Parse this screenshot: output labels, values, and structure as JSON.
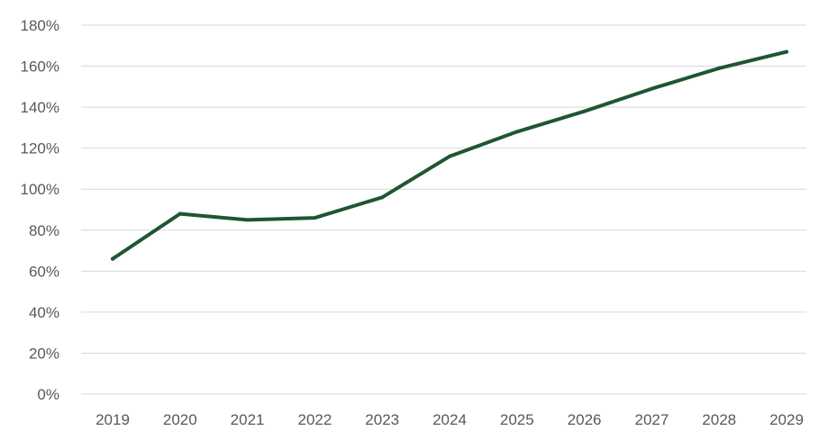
{
  "chart_data": {
    "type": "line",
    "x": [
      "2019",
      "2020",
      "2021",
      "2022",
      "2023",
      "2024",
      "2025",
      "2026",
      "2027",
      "2028",
      "2029"
    ],
    "series": [
      {
        "values": [
          66,
          88,
          85,
          86,
          96,
          116,
          128,
          138,
          149,
          159,
          167
        ],
        "color": "#1e5631"
      }
    ],
    "y_tick_labels": [
      "0%",
      "20%",
      "40%",
      "60%",
      "80%",
      "100%",
      "120%",
      "140%",
      "160%",
      "180%"
    ],
    "ylim": [
      0,
      180
    ],
    "y_unit": "%",
    "grid": true,
    "grid_axis": "y",
    "legend": "none"
  }
}
